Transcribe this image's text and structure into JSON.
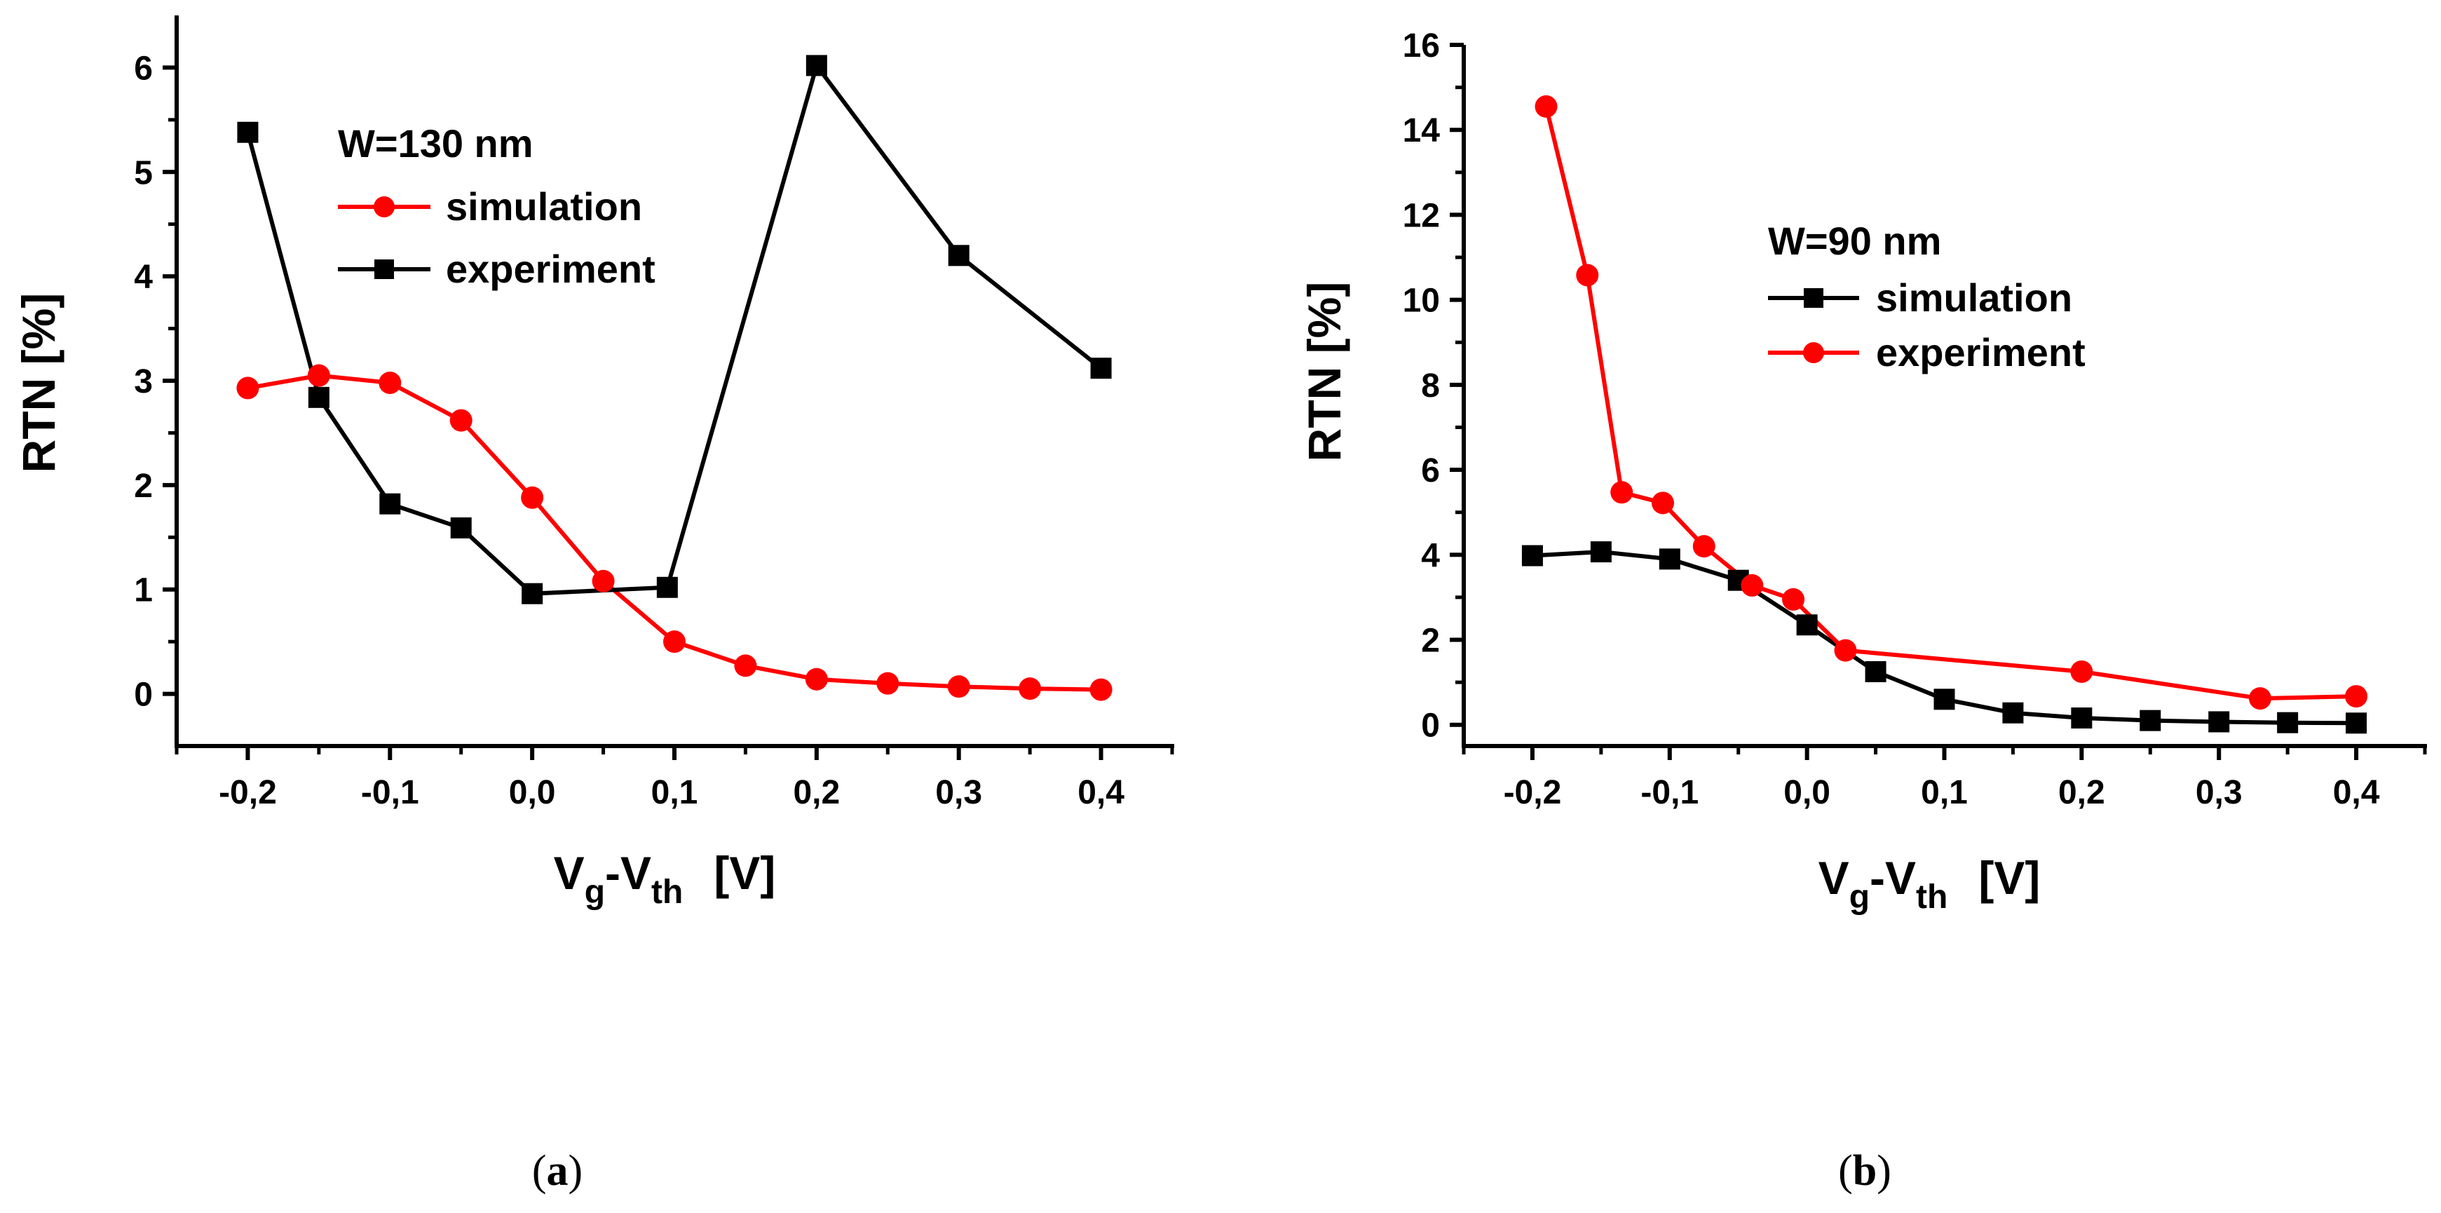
{
  "chart_data": [
    {
      "type": "line",
      "panel": "a",
      "caption_open": "(",
      "caption_letter": "a",
      "caption_close": ")",
      "legend_title": "W=130 nm",
      "xlabel": {
        "main_v": "V",
        "sub_g": "g",
        "dash": "-V",
        "sub_th": "th",
        "unit": "[V]"
      },
      "ylabel": "RTN [%]",
      "xlim": [
        -0.25,
        0.45
      ],
      "ylim": [
        -0.5,
        6.5
      ],
      "xticks": [
        -0.2,
        -0.1,
        0.0,
        0.1,
        0.2,
        0.3,
        0.4
      ],
      "xtick_labels": [
        "-0,2",
        "-0,1",
        "0,0",
        "0,1",
        "0,2",
        "0,3",
        "0,4"
      ],
      "yticks": [
        0,
        1,
        2,
        3,
        4,
        5,
        6
      ],
      "ytick_labels": [
        "0",
        "1",
        "2",
        "3",
        "4",
        "5",
        "6"
      ],
      "series": [
        {
          "name": "simulation",
          "color": "#ff0000",
          "marker": "circle",
          "x": [
            -0.2,
            -0.15,
            -0.1,
            -0.05,
            0.0,
            0.05,
            0.1,
            0.15,
            0.2,
            0.25,
            0.3,
            0.35,
            0.4
          ],
          "y": [
            2.93,
            3.05,
            2.98,
            2.62,
            1.88,
            1.08,
            0.5,
            0.27,
            0.14,
            0.1,
            0.07,
            0.05,
            0.04
          ]
        },
        {
          "name": "experiment",
          "color": "#000000",
          "marker": "square",
          "x": [
            -0.2,
            -0.15,
            -0.1,
            -0.05,
            0.0,
            0.095,
            0.2,
            0.3,
            0.4
          ],
          "y": [
            5.38,
            2.84,
            1.82,
            1.59,
            0.96,
            1.02,
            6.02,
            4.2,
            3.12
          ]
        }
      ]
    },
    {
      "type": "line",
      "panel": "b",
      "caption_open": "(",
      "caption_letter": "b",
      "caption_close": ")",
      "legend_title": "W=90 nm",
      "xlabel": {
        "main_v": "V",
        "sub_g": "g",
        "dash": "-V",
        "sub_th": "th",
        "unit": "[V]"
      },
      "ylabel": "RTN [%]",
      "xlim": [
        -0.25,
        0.45
      ],
      "ylim": [
        -0.5,
        16.0
      ],
      "xticks": [
        -0.2,
        -0.1,
        0.0,
        0.1,
        0.2,
        0.3,
        0.4
      ],
      "xtick_labels": [
        "-0,2",
        "-0,1",
        "0,0",
        "0,1",
        "0,2",
        "0,3",
        "0,4"
      ],
      "yticks": [
        0,
        2,
        4,
        6,
        8,
        10,
        12,
        14,
        16
      ],
      "ytick_labels": [
        "0",
        "2",
        "4",
        "6",
        "8",
        "10",
        "12",
        "14",
        "16"
      ],
      "series": [
        {
          "name": "simulation",
          "color": "#000000",
          "marker": "square",
          "x": [
            -0.2,
            -0.15,
            -0.1,
            -0.05,
            0.0,
            0.05,
            0.1,
            0.15,
            0.2,
            0.25,
            0.3,
            0.35,
            0.4
          ],
          "y": [
            3.98,
            4.07,
            3.9,
            3.4,
            2.35,
            1.25,
            0.6,
            0.28,
            0.16,
            0.1,
            0.07,
            0.05,
            0.04
          ]
        },
        {
          "name": "experiment",
          "color": "#ff0000",
          "marker": "circle",
          "x": [
            -0.19,
            -0.16,
            -0.135,
            -0.105,
            -0.075,
            -0.04,
            -0.01,
            0.028,
            0.2,
            0.33,
            0.4
          ],
          "y": [
            14.55,
            10.58,
            5.47,
            5.22,
            4.2,
            3.28,
            2.95,
            1.75,
            1.25,
            0.62,
            0.67
          ]
        }
      ]
    }
  ]
}
